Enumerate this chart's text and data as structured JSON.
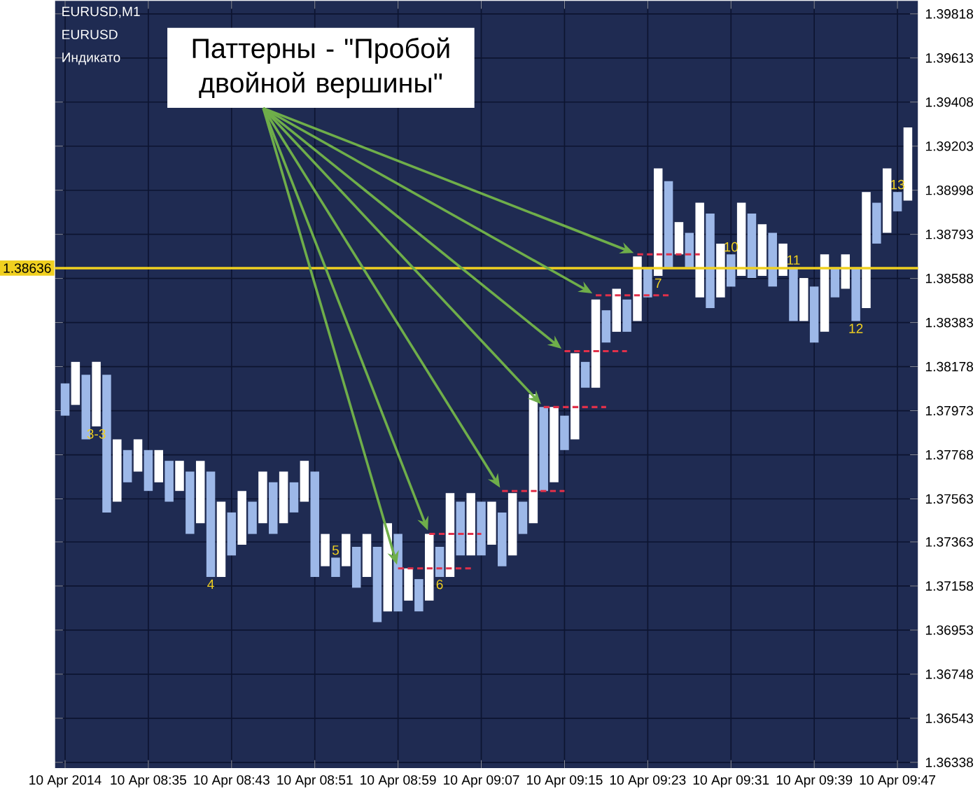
{
  "chart_data": {
    "type": "bar",
    "x": [
      "2014-04-10T08:27",
      "2014-04-10T08:28",
      "2014-04-10T08:29",
      "2014-04-10T08:30",
      "2014-04-10T08:31",
      "2014-04-10T08:32",
      "2014-04-10T08:33",
      "2014-04-10T08:34",
      "2014-04-10T08:35",
      "2014-04-10T08:36",
      "2014-04-10T08:37",
      "2014-04-10T08:38",
      "2014-04-10T08:39",
      "2014-04-10T08:40",
      "2014-04-10T08:41",
      "2014-04-10T08:42",
      "2014-04-10T08:43",
      "2014-04-10T08:44",
      "2014-04-10T08:45",
      "2014-04-10T08:46",
      "2014-04-10T08:47",
      "2014-04-10T08:48",
      "2014-04-10T08:49",
      "2014-04-10T08:50",
      "2014-04-10T08:51",
      "2014-04-10T08:52",
      "2014-04-10T08:53",
      "2014-04-10T08:54",
      "2014-04-10T08:55",
      "2014-04-10T08:56",
      "2014-04-10T08:57",
      "2014-04-10T08:58",
      "2014-04-10T08:59",
      "2014-04-10T09:00",
      "2014-04-10T09:01",
      "2014-04-10T09:02",
      "2014-04-10T09:03",
      "2014-04-10T09:04",
      "2014-04-10T09:05",
      "2014-04-10T09:06",
      "2014-04-10T09:07",
      "2014-04-10T09:08",
      "2014-04-10T09:09",
      "2014-04-10T09:10",
      "2014-04-10T09:11",
      "2014-04-10T09:12",
      "2014-04-10T09:13",
      "2014-04-10T09:14",
      "2014-04-10T09:15",
      "2014-04-10T09:16",
      "2014-04-10T09:17",
      "2014-04-10T09:18",
      "2014-04-10T09:19",
      "2014-04-10T09:20",
      "2014-04-10T09:21",
      "2014-04-10T09:22",
      "2014-04-10T09:23",
      "2014-04-10T09:24",
      "2014-04-10T09:25",
      "2014-04-10T09:26",
      "2014-04-10T09:27",
      "2014-04-10T09:28",
      "2014-04-10T09:29",
      "2014-04-10T09:30",
      "2014-04-10T09:31",
      "2014-04-10T09:32",
      "2014-04-10T09:33",
      "2014-04-10T09:34",
      "2014-04-10T09:35",
      "2014-04-10T09:36",
      "2014-04-10T09:37",
      "2014-04-10T09:38",
      "2014-04-10T09:39",
      "2014-04-10T09:40",
      "2014-04-10T09:41",
      "2014-04-10T09:42",
      "2014-04-10T09:43",
      "2014-04-10T09:44",
      "2014-04-10T09:45",
      "2014-04-10T09:46",
      "2014-04-10T09:47",
      "2014-04-10T09:48"
    ],
    "series": [
      {
        "base": [
          1.3795,
          1.38,
          1.3784,
          1.379,
          1.375,
          1.3755,
          1.3764,
          1.3769,
          1.376,
          1.3764,
          1.3755,
          1.376,
          1.374,
          1.3745,
          1.372,
          1.372,
          1.373,
          1.3735,
          1.374,
          1.3745,
          1.374,
          1.3745,
          1.375,
          1.3755,
          1.372,
          1.3725,
          1.372,
          1.3725,
          1.3715,
          1.372,
          1.3699,
          1.3704,
          1.3704,
          1.3709,
          1.3704,
          1.3709,
          1.372,
          1.372,
          1.373,
          1.373,
          1.373,
          1.3735,
          1.3725,
          1.373,
          1.374,
          1.3745,
          1.376,
          1.3764,
          1.3779,
          1.3784,
          1.3808,
          1.3808,
          1.3829,
          1.3834,
          1.3834,
          1.3839,
          1.385,
          1.386,
          1.3864,
          1.387,
          1.3864,
          1.385,
          1.3845,
          1.385,
          1.3855,
          1.386,
          1.3859,
          1.386,
          1.3855,
          1.386,
          1.3839,
          1.3839,
          1.3829,
          1.3834,
          1.385,
          1.3854,
          1.3839,
          1.3845,
          1.3875,
          1.388,
          1.389,
          1.3895
        ],
        "values": [
          0.0015,
          0.002,
          0.003,
          0.003,
          0.0064,
          0.0029,
          0.0015,
          0.0015,
          0.0019,
          0.0015,
          0.0019,
          0.0014,
          0.0029,
          0.0029,
          0.0049,
          0.0035,
          0.002,
          0.0025,
          0.0015,
          0.0024,
          0.0024,
          0.0024,
          0.0014,
          0.0019,
          0.0049,
          0.0015,
          0.0009,
          0.0015,
          0.0019,
          0.002,
          0.0035,
          0.0041,
          0.0036,
          0.0015,
          0.0015,
          0.0031,
          0.0014,
          0.0039,
          0.0025,
          0.0029,
          0.0025,
          0.002,
          0.0025,
          0.0029,
          0.0015,
          0.006,
          0.0039,
          0.0035,
          0.0016,
          0.004,
          0.0012,
          0.0041,
          0.0015,
          0.002,
          0.0015,
          0.003,
          0.0014,
          0.005,
          0.004,
          0.0015,
          0.0016,
          0.0044,
          0.0044,
          0.0025,
          0.0015,
          0.0034,
          0.003,
          0.0024,
          0.0025,
          0.0015,
          0.0025,
          0.002,
          0.0026,
          0.0036,
          0.0014,
          0.0016,
          0.0025,
          0.0054,
          0.0019,
          0.003,
          0.0009,
          0.0034
        ],
        "colors": [
          "#9db8e8",
          "#ffffff",
          "#9db8e8",
          "#ffffff",
          "#9db8e8",
          "#ffffff",
          "#9db8e8",
          "#ffffff",
          "#9db8e8",
          "#ffffff",
          "#9db8e8",
          "#ffffff",
          "#9db8e8",
          "#ffffff",
          "#9db8e8",
          "#ffffff",
          "#9db8e8",
          "#ffffff",
          "#9db8e8",
          "#ffffff",
          "#9db8e8",
          "#ffffff",
          "#9db8e8",
          "#ffffff",
          "#9db8e8",
          "#ffffff",
          "#9db8e8",
          "#ffffff",
          "#9db8e8",
          "#ffffff",
          "#9db8e8",
          "#ffffff",
          "#9db8e8",
          "#ffffff",
          "#9db8e8",
          "#ffffff",
          "#9db8e8",
          "#ffffff",
          "#9db8e8",
          "#ffffff",
          "#9db8e8",
          "#ffffff",
          "#9db8e8",
          "#ffffff",
          "#9db8e8",
          "#ffffff",
          "#9db8e8",
          "#ffffff",
          "#9db8e8",
          "#ffffff",
          "#9db8e8",
          "#ffffff",
          "#9db8e8",
          "#ffffff",
          "#9db8e8",
          "#ffffff",
          "#9db8e8",
          "#ffffff",
          "#9db8e8",
          "#ffffff",
          "#9db8e8",
          "#ffffff",
          "#9db8e8",
          "#ffffff",
          "#9db8e8",
          "#ffffff",
          "#9db8e8",
          "#ffffff",
          "#9db8e8",
          "#ffffff",
          "#9db8e8",
          "#ffffff",
          "#9db8e8",
          "#ffffff",
          "#9db8e8",
          "#ffffff",
          "#9db8e8",
          "#ffffff",
          "#9db8e8",
          "#ffffff",
          "#9db8e8",
          "#ffffff"
        ]
      },
      {
        "type": "line",
        "color": "#e0304a",
        "line_style": "dashed",
        "x": [
          "2014-04-10T08:59",
          "2014-04-10T09:06"
        ],
        "values": [
          1.3724,
          1.3724
        ]
      },
      {
        "type": "line",
        "color": "#e0304a",
        "line_style": "dashed",
        "x": [
          "2014-04-10T09:02",
          "2014-04-10T09:07"
        ],
        "values": [
          1.374,
          1.374
        ]
      },
      {
        "type": "line",
        "color": "#e0304a",
        "line_style": "dashed",
        "x": [
          "2014-04-10T09:09",
          "2014-04-10T09:15"
        ],
        "values": [
          1.376,
          1.376
        ]
      },
      {
        "type": "line",
        "color": "#e0304a",
        "line_style": "dashed",
        "x": [
          "2014-04-10T09:13",
          "2014-04-10T09:19"
        ],
        "values": [
          1.3799,
          1.3799
        ]
      },
      {
        "type": "line",
        "color": "#e0304a",
        "line_style": "dashed",
        "x": [
          "2014-04-10T09:15",
          "2014-04-10T09:21"
        ],
        "values": [
          1.3825,
          1.3825
        ]
      },
      {
        "type": "line",
        "color": "#e0304a",
        "line_style": "dashed",
        "x": [
          "2014-04-10T09:18",
          "2014-04-10T09:25"
        ],
        "values": [
          1.3851,
          1.3851
        ]
      },
      {
        "type": "line",
        "color": "#e0304a",
        "line_style": "dashed",
        "x": [
          "2014-04-10T09:22",
          "2014-04-10T09:28"
        ],
        "values": [
          1.387,
          1.387
        ]
      }
    ],
    "xlim": [
      "2014-04-10T08:26",
      "2014-04-10T09:49"
    ],
    "xticks": [
      {
        "value": "2014-04-10T08:27",
        "label": "10 Apr 2014"
      },
      {
        "value": "2014-04-10T08:35",
        "label": "10 Apr 08:35"
      },
      {
        "value": "2014-04-10T08:43",
        "label": "10 Apr 08:43"
      },
      {
        "value": "2014-04-10T08:51",
        "label": "10 Apr 08:51"
      },
      {
        "value": "2014-04-10T08:59",
        "label": "10 Apr 08:59"
      },
      {
        "value": "2014-04-10T09:07",
        "label": "10 Apr 09:07"
      },
      {
        "value": "2014-04-10T09:15",
        "label": "10 Apr 09:15"
      },
      {
        "value": "2014-04-10T09:23",
        "label": "10 Apr 09:23"
      },
      {
        "value": "2014-04-10T09:31",
        "label": "10 Apr 09:31"
      },
      {
        "value": "2014-04-10T09:39",
        "label": "10 Apr 09:39"
      },
      {
        "value": "2014-04-10T09:47",
        "label": "10 Apr 09:47"
      }
    ],
    "ylim": [
      1.3631,
      1.3988
    ],
    "yticks": [
      1.36338,
      1.36543,
      1.36748,
      1.36953,
      1.37158,
      1.37363,
      1.37563,
      1.37768,
      1.37973,
      1.38178,
      1.38383,
      1.38588,
      1.38793,
      1.38998,
      1.39203,
      1.39408,
      1.39613,
      1.39818
    ],
    "grid": true,
    "ref_lines": [
      {
        "axis": "y",
        "value": 1.38636,
        "label": "1.38636",
        "color": "#f0d020"
      }
    ],
    "annotations": [
      "EURUSD,M1",
      "EURUSD",
      "Индикато",
      "Паттерны - \"Пробой двойной вершины\"",
      {
        "text": "3-3",
        "x": "2014-04-10T08:30",
        "y": 1.379
      },
      {
        "text": "4",
        "x": "2014-04-10T08:41",
        "y": 1.372
      },
      {
        "text": "5",
        "x": "2014-04-10T08:53",
        "y": 1.3729
      },
      {
        "text": "6",
        "x": "2014-04-10T09:03",
        "y": 1.372
      },
      {
        "text": "7",
        "x": "2014-04-10T09:24",
        "y": 1.386
      },
      {
        "text": "10",
        "x": "2014-04-10T09:31",
        "y": 1.387
      },
      {
        "text": "11",
        "x": "2014-04-10T09:37",
        "y": 1.3864
      },
      {
        "text": "12",
        "x": "2014-04-10T09:43",
        "y": 1.3839
      },
      {
        "text": "13",
        "x": "2014-04-10T09:47",
        "y": 1.3899
      }
    ]
  }
}
